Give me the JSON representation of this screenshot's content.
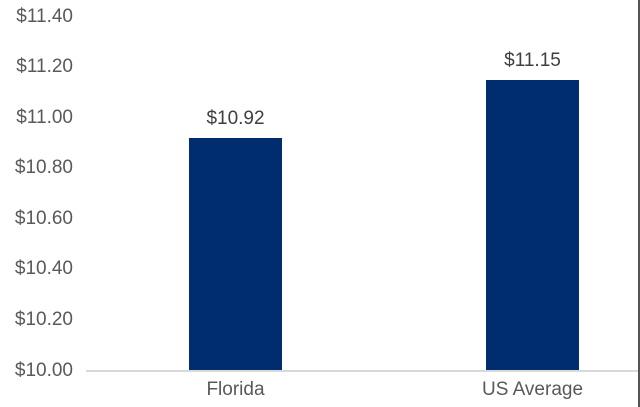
{
  "theme": {
    "background": "#ffffff",
    "bar_color": "#002d6e",
    "tick_label_color": "#595959",
    "category_label_color": "#595959",
    "data_label_color": "#3f3f3f",
    "axis_line_color": "#d9d9d9",
    "right_border_color": "#545456"
  },
  "chart_data": {
    "type": "bar",
    "title": "",
    "xlabel": "",
    "ylabel": "",
    "categories": [
      "Florida",
      "US Average"
    ],
    "values": [
      10.92,
      11.15
    ],
    "data_labels": [
      "$10.92",
      "$11.15"
    ],
    "ylim": [
      10.0,
      11.4
    ],
    "ytick_step": 0.2,
    "ytick_labels": [
      "$10.00",
      "$10.20",
      "$10.40",
      "$10.60",
      "$10.80",
      "$11.00",
      "$11.20",
      "$11.40"
    ],
    "grid": false,
    "legend": false
  }
}
